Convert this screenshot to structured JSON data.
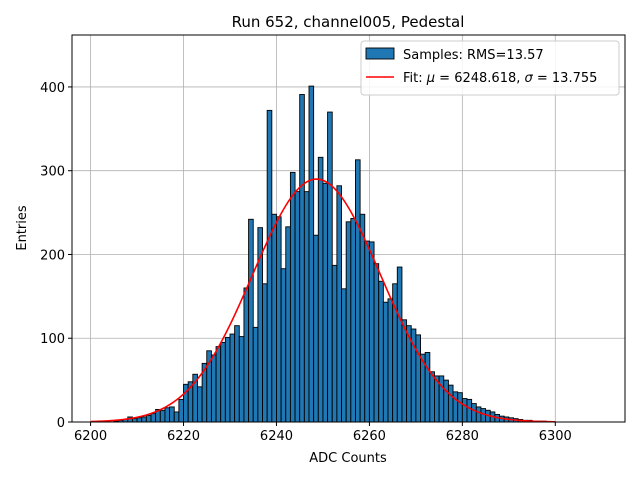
{
  "chart_data": {
    "type": "bar",
    "title": "Run 652, channel005, Pedestal",
    "xlabel": "ADC Counts",
    "ylabel": "Entries",
    "xlim": [
      6196,
      6315
    ],
    "ylim": [
      0,
      462
    ],
    "xticks": [
      6200,
      6220,
      6240,
      6260,
      6280,
      6300
    ],
    "yticks": [
      0,
      100,
      200,
      300,
      400
    ],
    "grid": true,
    "legend_position": "top-right",
    "legend": {
      "samples_label": "Samples: RMS=13.57",
      "fit_label_prefix": "Fit: ",
      "fit_mu_symbol": "μ",
      "fit_mu_text": " = 6248.618, ",
      "fit_sigma_symbol": "σ",
      "fit_sigma_text": " = 13.755"
    },
    "histogram": {
      "bin_width": 1,
      "x": [
        6200,
        6201,
        6202,
        6203,
        6204,
        6205,
        6206,
        6207,
        6208,
        6209,
        6210,
        6211,
        6212,
        6213,
        6214,
        6215,
        6216,
        6217,
        6218,
        6219,
        6220,
        6221,
        6222,
        6223,
        6224,
        6225,
        6226,
        6227,
        6228,
        6229,
        6230,
        6231,
        6232,
        6233,
        6234,
        6235,
        6236,
        6237,
        6238,
        6239,
        6240,
        6241,
        6242,
        6243,
        6244,
        6245,
        6246,
        6247,
        6248,
        6249,
        6250,
        6251,
        6252,
        6253,
        6254,
        6255,
        6256,
        6257,
        6258,
        6259,
        6260,
        6261,
        6262,
        6263,
        6264,
        6265,
        6266,
        6267,
        6268,
        6269,
        6270,
        6271,
        6272,
        6273,
        6274,
        6275,
        6276,
        6277,
        6278,
        6279,
        6280,
        6281,
        6282,
        6283,
        6284,
        6285,
        6286,
        6287,
        6288,
        6289,
        6290,
        6291,
        6292,
        6293,
        6294,
        6295,
        6296,
        6297,
        6298,
        6299,
        6300
      ],
      "values": [
        0,
        0,
        0,
        0,
        0,
        1,
        2,
        3,
        6,
        4,
        5,
        6,
        8,
        10,
        15,
        14,
        17,
        18,
        12,
        27,
        45,
        48,
        57,
        42,
        70,
        85,
        80,
        90,
        95,
        101,
        105,
        115,
        102,
        160,
        242,
        113,
        232,
        165,
        372,
        248,
        245,
        183,
        233,
        298,
        275,
        391,
        275,
        401,
        223,
        316,
        285,
        370,
        187,
        282,
        159,
        239,
        243,
        313,
        248,
        216,
        215,
        189,
        168,
        143,
        147,
        165,
        185,
        122,
        115,
        111,
        104,
        81,
        83,
        60,
        55,
        55,
        50,
        44,
        36,
        35,
        28,
        27,
        22,
        18,
        16,
        14,
        12,
        9,
        7,
        6,
        5,
        4,
        3,
        2,
        2,
        1,
        1,
        1,
        0,
        0,
        0
      ]
    },
    "fit": {
      "mu": 6248.618,
      "sigma": 13.755,
      "amplitude": 290,
      "x_range": [
        6200,
        6300
      ]
    }
  }
}
